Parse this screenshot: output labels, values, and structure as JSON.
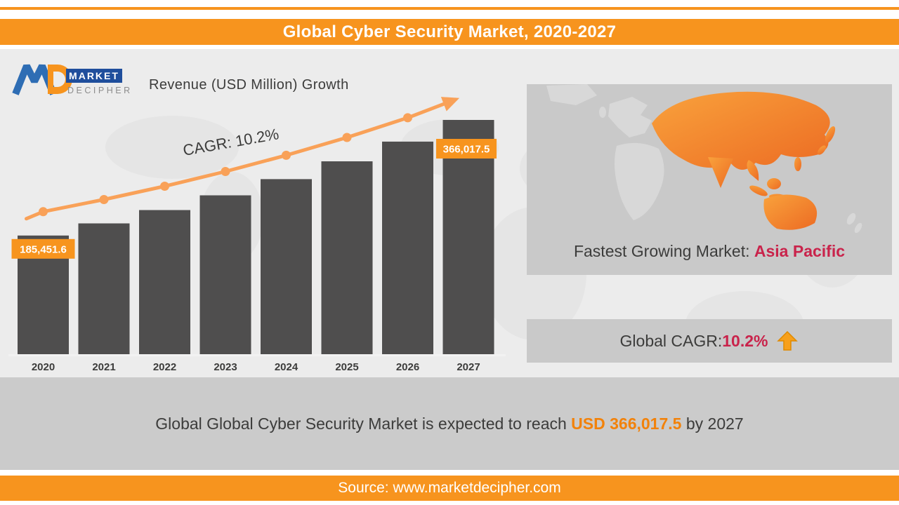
{
  "header": {
    "title": "Global Cyber Security Market, 2020-2027"
  },
  "logo": {
    "market": "MARKET",
    "decipher": "DECIPHER"
  },
  "chart": {
    "title": "Revenue (USD Million) Growth",
    "cagr_annotation": "CAGR: 10.2%"
  },
  "chart_data": {
    "type": "bar",
    "title": "Revenue (USD Million) Growth",
    "categories": [
      "2020",
      "2021",
      "2022",
      "2023",
      "2024",
      "2025",
      "2026",
      "2027"
    ],
    "values": [
      185451.6,
      204368,
      225213,
      248187,
      273502,
      301399,
      332142,
      366017.5
    ],
    "unit": "USD Million",
    "ylim": [
      0,
      380000
    ],
    "grid": false,
    "legend": false,
    "bar_color": "#4F4E4E",
    "trend_line": {
      "color": "#F9A158",
      "annotation": "CAGR: 10.2%",
      "style": "upward line with round markers and arrowhead"
    },
    "data_labels": {
      "2020": "185,451.6",
      "2027": "366,017.5"
    }
  },
  "map_panel": {
    "caption_prefix": "Fastest Growing Market: ",
    "caption_highlight": "Asia Pacific"
  },
  "cagr_panel": {
    "label_prefix": "Global CAGR: ",
    "value": "10.2%"
  },
  "summary": {
    "prefix": "Global Global Cyber Security Market is expected to reach ",
    "highlight": "USD 366,017.5",
    "suffix": " by 2027"
  },
  "footer": {
    "text": "Source: www.marketdecipher.com"
  },
  "colors": {
    "accent_orange": "#F7941E",
    "trend_orange": "#F9A158",
    "bar_gray": "#4F4E4E",
    "highlight_red": "#C9234B",
    "panel_gray": "#C9C9C9",
    "text_dark": "#3C3C3B"
  }
}
